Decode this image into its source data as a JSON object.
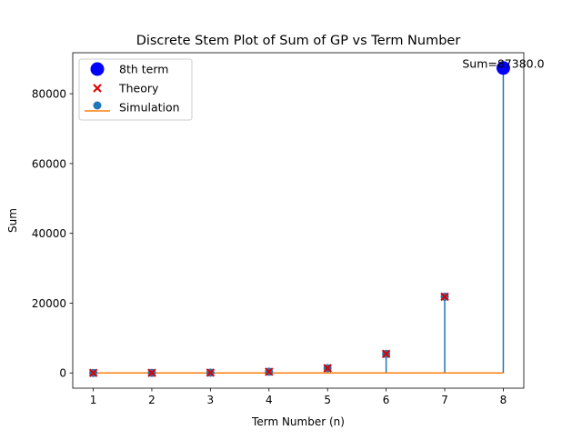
{
  "chart_data": {
    "type": "scatter",
    "title": "Discrete Stem Plot of Sum of GP vs Term Number",
    "xlabel": "Term Number (n)",
    "ylabel": "Sum",
    "xlim": [
      0.65,
      8.35
    ],
    "ylim": [
      -4369,
      91749
    ],
    "x_ticks": [
      1,
      2,
      3,
      4,
      5,
      6,
      7,
      8
    ],
    "y_ticks": [
      0,
      20000,
      40000,
      60000,
      80000
    ],
    "grid": false,
    "legend_position": "upper left",
    "x": [
      1,
      2,
      3,
      4,
      5,
      6,
      7,
      8
    ],
    "series": [
      {
        "name": "Simulation",
        "kind": "stem",
        "color": "#1f77b4",
        "baseline_color": "#ff7f0e",
        "values": [
          5,
          25,
          85,
          340,
          1365,
          5460,
          21845,
          87380
        ]
      },
      {
        "name": "Theory",
        "kind": "marker-x",
        "color": "#e00000",
        "values": [
          5,
          25,
          85,
          340,
          1365,
          5460,
          21845,
          87380
        ]
      },
      {
        "name": "8th term",
        "kind": "marker-circle",
        "color": "#0000ff",
        "x": [
          8
        ],
        "values": [
          87380
        ]
      }
    ],
    "annotations": [
      {
        "text": "Sum=87380.0",
        "x": 8,
        "y": 87380
      }
    ]
  }
}
